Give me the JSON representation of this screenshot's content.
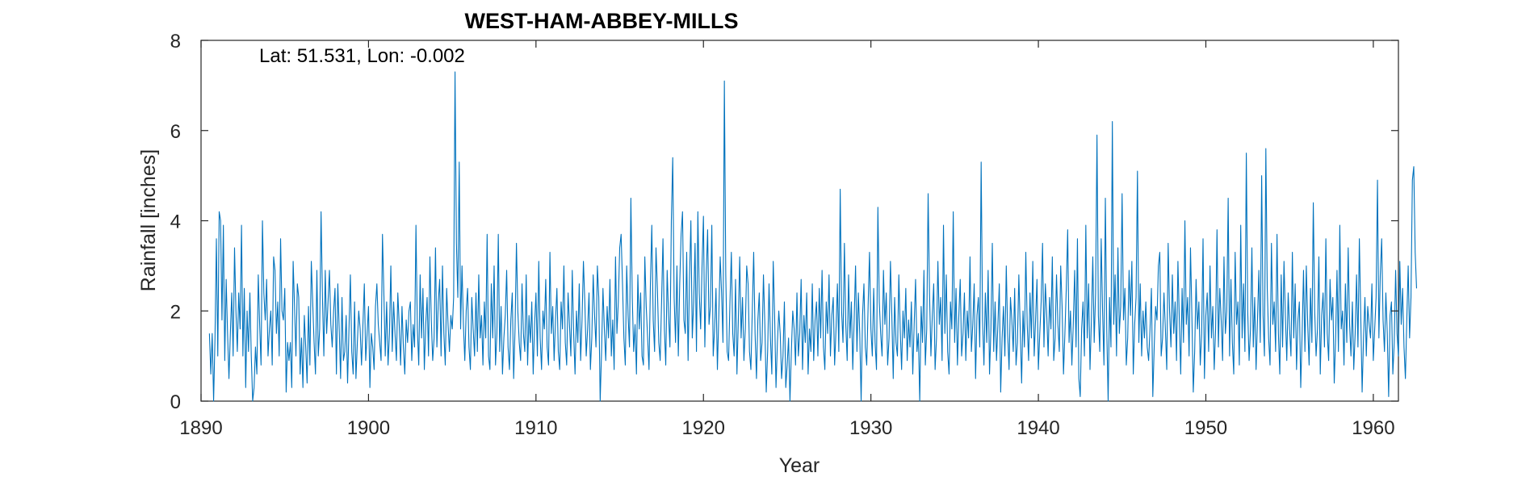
{
  "chart_data": {
    "type": "line",
    "title": "WEST-HAM-ABBEY-MILLS",
    "annotation": "Lat: 51.531, Lon: -0.002",
    "xlabel": "Year",
    "ylabel": "Rainfall [inches]",
    "xlim": [
      1890,
      1961.5
    ],
    "ylim": [
      0,
      8
    ],
    "xticks": [
      "1890",
      "1900",
      "1910",
      "1920",
      "1930",
      "1940",
      "1950",
      "1960"
    ],
    "yticks": [
      "0",
      "2",
      "4",
      "6",
      "8"
    ],
    "grid": false,
    "color": "#0072bd",
    "series": [
      {
        "x_start": 1890.5,
        "step": 0.083333,
        "values": [
          1.5,
          0.6,
          1.5,
          0.0,
          1.4,
          3.6,
          1.0,
          4.2,
          4.0,
          1.8,
          3.9,
          0.9,
          2.7,
          1.5,
          0.5,
          1.5,
          2.4,
          1.0,
          3.4,
          2.0,
          1.1,
          2.4,
          1.6,
          3.9,
          1.0,
          2.5,
          0.3,
          2.0,
          1.1,
          2.4,
          1.0,
          0.0,
          0.3,
          1.2,
          0.6,
          2.8,
          1.7,
          0.8,
          4.0,
          2.4,
          1.8,
          2.7,
          1.0,
          1.6,
          2.0,
          0.8,
          3.2,
          2.9,
          1.5,
          2.2,
          1.0,
          3.6,
          2.0,
          1.8,
          2.5,
          0.2,
          1.3,
          0.9,
          1.3,
          0.3,
          3.1,
          2.1,
          1.0,
          2.6,
          2.3,
          0.6,
          1.4,
          0.3,
          1.9,
          1.2,
          0.4,
          2.1,
          0.8,
          3.1,
          2.2,
          1.3,
          0.6,
          2.9,
          1.0,
          1.6,
          4.2,
          2.3,
          1.0,
          2.9,
          1.5,
          2.2,
          2.9,
          1.7,
          1.2,
          2.0,
          2.5,
          0.6,
          2.6,
          1.6,
          0.5,
          2.3,
          0.9,
          1.1,
          1.9,
          0.4,
          1.6,
          2.8,
          1.1,
          0.6,
          2.2,
          0.5,
          1.3,
          2.0,
          1.6,
          0.8,
          1.7,
          2.6,
          0.9,
          1.5,
          2.1,
          0.3,
          1.5,
          1.2,
          0.7,
          2.1,
          2.6,
          1.7,
          1.3,
          0.9,
          3.7,
          2.4,
          1.0,
          2.2,
          0.8,
          1.5,
          3.0,
          1.1,
          2.2,
          1.5,
          0.9,
          2.4,
          1.7,
          0.8,
          2.1,
          1.2,
          0.6,
          1.8,
          1.3,
          2.0,
          2.2,
          0.9,
          1.7,
          1.2,
          3.9,
          1.6,
          0.8,
          2.8,
          1.4,
          2.5,
          0.7,
          1.7,
          2.3,
          1.0,
          3.2,
          1.8,
          0.9,
          1.4,
          3.4,
          1.2,
          2.2,
          2.7,
          1.0,
          3.0,
          1.5,
          0.8,
          2.5,
          1.7,
          1.1,
          1.9,
          1.6,
          2.3,
          7.3,
          3.5,
          2.3,
          5.3,
          1.6,
          3.0,
          1.7,
          0.9,
          2.0,
          2.5,
          1.2,
          0.7,
          2.3,
          1.6,
          1.0,
          2.4,
          1.1,
          2.8,
          1.4,
          1.9,
          0.8,
          2.2,
          1.4,
          3.7,
          1.0,
          0.7,
          2.6,
          1.4,
          3.0,
          0.8,
          1.5,
          3.7,
          1.1,
          2.1,
          0.6,
          1.4,
          1.9,
          2.9,
          1.2,
          0.7,
          1.8,
          2.4,
          0.5,
          1.6,
          3.5,
          2.0,
          1.3,
          0.9,
          2.6,
          1.5,
          1.1,
          2.8,
          0.8,
          1.9,
          1.3,
          2.2,
          0.6,
          1.7,
          2.4,
          1.0,
          3.1,
          1.4,
          0.7,
          2.0,
          1.6,
          2.7,
          1.2,
          0.8,
          3.3,
          1.5,
          2.1,
          0.9,
          1.8,
          2.5,
          1.1,
          0.7,
          2.2,
          1.6,
          3.0,
          1.3,
          0.8,
          2.4,
          1.7,
          1.0,
          2.9,
          1.5,
          0.6,
          2.0,
          1.3,
          2.6,
          0.9,
          1.8,
          3.1,
          2.2,
          1.0,
          1.6,
          2.4,
          0.7,
          1.4,
          2.8,
          1.9,
          1.2,
          3.0,
          2.3,
          0.0,
          1.1,
          2.5,
          1.6,
          0.9,
          2.1,
          1.4,
          2.7,
          1.0,
          1.8,
          0.7,
          3.2,
          1.5,
          2.2,
          3.4,
          3.7,
          2.6,
          1.4,
          0.8,
          3.0,
          1.9,
          1.2,
          4.5,
          2.3,
          1.1,
          1.7,
          0.6,
          2.8,
          1.6,
          2.4,
          1.0,
          0.8,
          3.2,
          2.1,
          1.4,
          0.7,
          2.6,
          3.9,
          1.8,
          1.1,
          3.4,
          2.5,
          1.3,
          0.9,
          2.2,
          3.6,
          1.6,
          0.8,
          2.9,
          1.9,
          1.2,
          4.0,
          5.4,
          2.3,
          1.3,
          3.0,
          1.0,
          2.6,
          3.7,
          4.2,
          1.8,
          1.5,
          3.3,
          0.9,
          2.7,
          4.0,
          1.4,
          2.2,
          3.5,
          1.1,
          4.2,
          2.4,
          1.6,
          3.0,
          4.1,
          1.2,
          2.8,
          3.8,
          1.7,
          2.1,
          3.9,
          1.0,
          1.6,
          2.5,
          0.7,
          1.9,
          3.2,
          2.4,
          1.3,
          7.1,
          2.8,
          1.1,
          0.9,
          2.2,
          3.3,
          1.5,
          1.0,
          2.7,
          0.6,
          1.8,
          3.2,
          1.4,
          2.3,
          0.9,
          1.6,
          3.0,
          2.6,
          1.1,
          0.7,
          2.0,
          3.3,
          1.5,
          0.5,
          1.8,
          2.4,
          0.9,
          1.3,
          2.8,
          1.7,
          0.2,
          1.1,
          2.6,
          1.4,
          0.6,
          3.1,
          1.9,
          0.3,
          1.3,
          2.0,
          1.5,
          0.5,
          1.0,
          2.2,
          0.3,
          0.8,
          1.4,
          0.0,
          1.1,
          2.0,
          1.6,
          0.8,
          2.4,
          1.0,
          1.5,
          2.7,
          0.7,
          1.9,
          1.3,
          2.4,
          0.6,
          1.6,
          1.1,
          2.6,
          0.9,
          1.8,
          2.2,
          1.0,
          2.5,
          1.4,
          2.9,
          1.2,
          0.7,
          2.2,
          1.5,
          2.8,
          1.0,
          1.9,
          2.3,
          0.8,
          1.6,
          2.6,
          1.1,
          4.7,
          2.0,
          1.3,
          3.5,
          1.7,
          0.9,
          2.8,
          1.4,
          2.2,
          0.7,
          1.8,
          3.0,
          1.1,
          2.4,
          1.5,
          0.0,
          1.9,
          2.6,
          1.2,
          0.8,
          2.1,
          3.3,
          1.6,
          1.0,
          2.5,
          1.3,
          0.7,
          4.3,
          2.2,
          1.5,
          1.0,
          2.9,
          1.7,
          2.4,
          0.8,
          1.4,
          3.1,
          1.9,
          0.5,
          2.3,
          1.3,
          1.0,
          2.8,
          1.6,
          0.7,
          2.0,
          1.4,
          2.5,
          0.9,
          1.8,
          1.2,
          2.2,
          0.6,
          1.7,
          2.7,
          1.1,
          1.5,
          0.0,
          2.1,
          1.3,
          2.9,
          0.8,
          1.6,
          4.6,
          2.4,
          1.0,
          1.9,
          2.6,
          0.7,
          1.4,
          3.1,
          1.7,
          2.3,
          0.9,
          3.9,
          1.5,
          2.8,
          1.1,
          0.6,
          2.2,
          1.6,
          4.2,
          1.3,
          2.5,
          0.8,
          1.9,
          2.7,
          1.0,
          1.5,
          2.4,
          0.9,
          2.0,
          1.4,
          3.2,
          1.1,
          1.7,
          2.6,
          0.5,
          1.9,
          2.3,
          1.2,
          5.3,
          1.8,
          0.8,
          2.4,
          1.3,
          2.9,
          0.6,
          1.6,
          3.5,
          1.1,
          2.2,
          0.9,
          1.7,
          2.6,
          0.2,
          1.4,
          2.1,
          1.0,
          3.0,
          1.5,
          0.7,
          2.3,
          1.8,
          1.1,
          2.5,
          0.8,
          1.3,
          2.8,
          1.6,
          0.4,
          2.0,
          1.2,
          3.3,
          1.7,
          0.9,
          2.4,
          1.4,
          3.1,
          1.0,
          1.8,
          2.7,
          0.7,
          1.5,
          2.2,
          3.5,
          1.2,
          2.6,
          1.9,
          1.0,
          2.3,
          1.6,
          3.2,
          0.9,
          1.4,
          2.8,
          1.7,
          1.1,
          3.0,
          2.1,
          0.6,
          1.5,
          2.5,
          3.8,
          1.3,
          2.0,
          0.8,
          1.7,
          2.9,
          1.2,
          3.6,
          0.5,
          0.1,
          1.6,
          2.2,
          1.0,
          3.9,
          1.4,
          2.6,
          0.7,
          1.8,
          3.2,
          1.3,
          2.4,
          5.9,
          1.9,
          1.1,
          3.6,
          2.0,
          0.8,
          4.5,
          1.6,
          0.0,
          2.3,
          1.2,
          6.2,
          1.7,
          2.8,
          1.0,
          3.4,
          1.5,
          2.1,
          4.6,
          1.8,
          2.5,
          0.8,
          1.4,
          2.9,
          1.9,
          3.1,
          0.6,
          1.7,
          2.3,
          5.1,
          1.3,
          2.6,
          1.0,
          2.0,
          1.4,
          2.2,
          1.2,
          0.9,
          1.6,
          2.5,
          0.1,
          1.2,
          2.1,
          1.8,
          3.0,
          3.3,
          1.0,
          1.4,
          2.4,
          1.6,
          0.7,
          3.5,
          2.0,
          1.2,
          2.8,
          1.5,
          2.2,
          0.9,
          3.1,
          1.8,
          0.6,
          2.5,
          1.3,
          4.0,
          1.7,
          2.3,
          1.0,
          3.4,
          1.9,
          0.2,
          1.1,
          2.7,
          1.6,
          2.2,
          0.8,
          1.5,
          3.6,
          0.5,
          1.9,
          2.4,
          1.1,
          3.0,
          1.4,
          2.1,
          0.7,
          1.6,
          3.8,
          1.2,
          2.5,
          1.8,
          0.9,
          3.2,
          1.5,
          2.0,
          4.5,
          1.0,
          2.7,
          1.3,
          0.6,
          3.3,
          1.7,
          2.2,
          0.8,
          3.9,
          1.4,
          2.6,
          1.1,
          5.5,
          2.0,
          0.9,
          1.6,
          3.4,
          1.2,
          2.3,
          0.7,
          1.8,
          2.9,
          1.3,
          5.0,
          1.9,
          1.0,
          5.6,
          2.5,
          1.4,
          0.8,
          3.5,
          1.7,
          2.2,
          1.1,
          3.7,
          1.5,
          0.6,
          2.8,
          1.2,
          3.1,
          1.9,
          0.9,
          2.4,
          1.6,
          1.0,
          3.3,
          1.4,
          2.6,
          0.7,
          1.8,
          2.2,
          0.3,
          1.5,
          2.9,
          1.1,
          3.0,
          1.7,
          0.8,
          2.5,
          1.3,
          4.4,
          2.0,
          1.0,
          1.6,
          3.2,
          0.6,
          1.9,
          2.4,
          1.2,
          3.6,
          1.5,
          0.9,
          2.7,
          1.8,
          2.3,
          0.4,
          1.4,
          2.9,
          1.1,
          3.9,
          1.6,
          2.0,
          0.8,
          2.6,
          1.3,
          3.4,
          1.7,
          1.0,
          2.2,
          0.7,
          1.5,
          2.8,
          1.2,
          3.6,
          1.9,
          0.2,
          1.4,
          2.3,
          1.0,
          2.1,
          1.7,
          1.4,
          2.6,
          0.9,
          1.6,
          2.3,
          4.9,
          1.4,
          2.8,
          3.6,
          1.8,
          1.1,
          2.4,
          1.5,
          0.1,
          1.9,
          2.2,
          0.6,
          1.3,
          2.9,
          1.5,
          1.0,
          3.1,
          1.7,
          2.5,
          1.2,
          0.5,
          1.8,
          3.0,
          1.4,
          2.3,
          4.9,
          5.2,
          3.3,
          2.5
        ]
      }
    ]
  }
}
